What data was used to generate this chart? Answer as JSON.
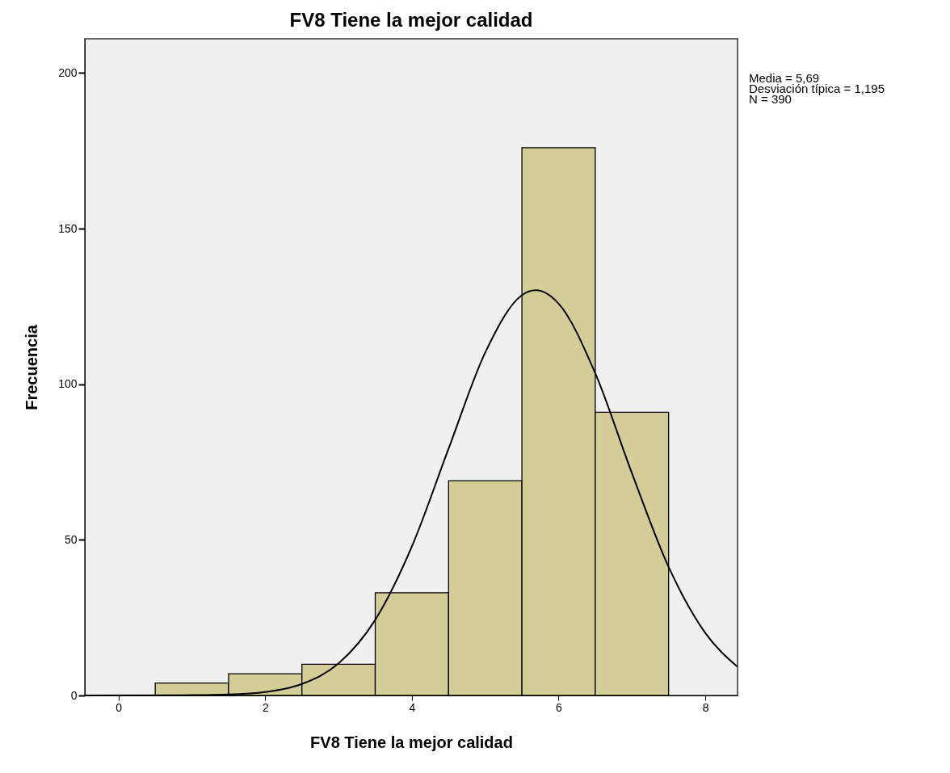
{
  "chart_data": {
    "type": "histogram",
    "title": "FV8 Tiene la mejor calidad",
    "xlabel": "FV8 Tiene la mejor calidad",
    "ylabel": "Frecuencia",
    "bins": [
      0.5,
      1.5,
      2.5,
      3.5,
      4.5,
      5.5,
      6.5,
      7.5
    ],
    "values": [
      4,
      7,
      10,
      33,
      69,
      176,
      91
    ],
    "color": "#d3ce97",
    "series": [
      {
        "type": "line",
        "color": "#000000",
        "x": [
          -0.46,
          1,
          1.5,
          2,
          2.5,
          3,
          3.5,
          4,
          4.5,
          5,
          5.5,
          5.69,
          6,
          6.5,
          7,
          7.5,
          8,
          8.44
        ],
        "values": [
          0,
          0.1,
          0.3,
          1.1,
          3.7,
          10.3,
          24.3,
          47.9,
          79.3,
          110.2,
          128.6,
          130.2,
          125.9,
          103.5,
          71.4,
          41.3,
          20.1,
          9.2
        ]
      }
    ],
    "xlim": [
      -0.46,
      8.44
    ],
    "xticks": [
      0,
      2,
      4,
      6,
      8
    ],
    "ylim": [
      0,
      211
    ],
    "yticks": [
      0,
      50,
      100,
      150,
      200
    ],
    "grid": false,
    "line_style": "solid",
    "annotations": [
      "Media = 5,69",
      "Desviación típica = 1,195",
      "N = 390"
    ]
  }
}
